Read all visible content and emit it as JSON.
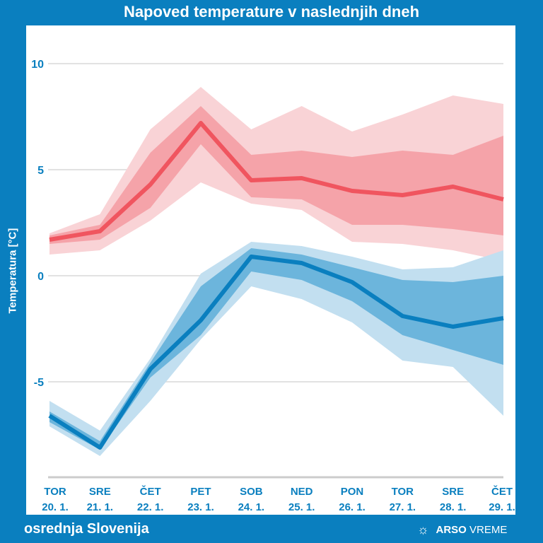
{
  "chart_data": {
    "type": "area",
    "title": "Napoved temperature v naslednjih dneh",
    "ylabel": "Temperatura [°C]",
    "ylim": [
      -9.5,
      11.7
    ],
    "yticks": [
      10,
      5,
      0,
      -5
    ],
    "grid": true,
    "categories": [
      [
        "TOR",
        "20. 1."
      ],
      [
        "SRE",
        "21. 1."
      ],
      [
        "ČET",
        "22. 1."
      ],
      [
        "PET",
        "23. 1."
      ],
      [
        "SOB",
        "24. 1."
      ],
      [
        "NED",
        "25. 1."
      ],
      [
        "PON",
        "26. 1."
      ],
      [
        "TOR",
        "27. 1."
      ],
      [
        "SRE",
        "28. 1."
      ],
      [
        "ČET",
        "29. 1."
      ]
    ],
    "series": [
      {
        "kind": "max",
        "color": "#f0555f",
        "band_outer": "#f9d3d6",
        "band_inner": "#f5a3a9",
        "median": [
          1.7,
          2.1,
          4.3,
          7.2,
          4.5,
          4.6,
          4.0,
          3.8,
          4.2,
          3.6
        ],
        "inner_upper": [
          1.9,
          2.4,
          5.8,
          8.0,
          5.7,
          5.9,
          5.6,
          5.9,
          5.7,
          6.6
        ],
        "inner_lower": [
          1.5,
          1.7,
          3.2,
          6.2,
          3.7,
          3.6,
          2.4,
          2.4,
          2.2,
          1.9
        ],
        "outer_upper": [
          2.0,
          2.9,
          6.9,
          8.9,
          6.9,
          8.0,
          6.8,
          7.6,
          8.5,
          8.1
        ],
        "outer_lower": [
          1.0,
          1.2,
          2.6,
          4.4,
          3.4,
          3.1,
          1.6,
          1.5,
          1.2,
          0.7
        ]
      },
      {
        "kind": "min",
        "color": "#0a7fbf",
        "band_outer": "#c2dff0",
        "band_inner": "#6cb5dc",
        "median": [
          -6.6,
          -8.1,
          -4.4,
          -2.1,
          0.9,
          0.6,
          -0.3,
          -1.9,
          -2.4,
          -2.0
        ],
        "inner_upper": [
          -6.4,
          -7.8,
          -4.1,
          -0.5,
          1.3,
          1.0,
          0.4,
          -0.2,
          -0.3,
          0.0
        ],
        "inner_lower": [
          -6.9,
          -8.2,
          -4.8,
          -2.8,
          0.2,
          -0.2,
          -1.2,
          -2.8,
          -3.5,
          -4.2
        ],
        "outer_upper": [
          -5.9,
          -7.3,
          -3.9,
          0.1,
          1.6,
          1.4,
          0.9,
          0.3,
          0.4,
          1.2
        ],
        "outer_lower": [
          -7.1,
          -8.5,
          -5.9,
          -3.0,
          -0.5,
          -1.1,
          -2.2,
          -4.0,
          -4.3,
          -6.6
        ]
      }
    ]
  },
  "footer": {
    "region": "osrednja Slovenija",
    "brand_bold": "ARSO",
    "brand_light": "VREME",
    "brand_icon": "sun-icon"
  }
}
